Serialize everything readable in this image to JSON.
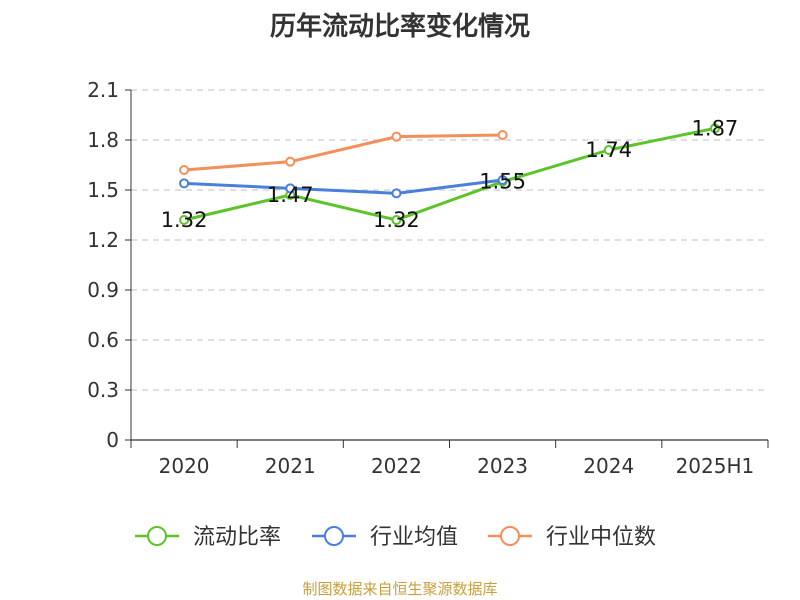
{
  "chart_data": {
    "type": "line",
    "title": "历年流动比率变化情况",
    "categories": [
      "2020",
      "2021",
      "2022",
      "2023",
      "2024",
      "2025H1"
    ],
    "ylim": [
      0,
      2.1
    ],
    "yticks": [
      0,
      0.3,
      0.6,
      0.9,
      1.2,
      1.5,
      1.8,
      2.1
    ],
    "ytick_labels": [
      "0",
      "0.3",
      "0.6",
      "0.9",
      "1.2",
      "1.5",
      "1.8",
      "2.1"
    ],
    "grid": true,
    "legend_position": "bottom",
    "series": [
      {
        "name": "流动比率",
        "color": "#5bc428",
        "values": [
          1.32,
          1.47,
          1.32,
          1.55,
          1.74,
          1.87
        ],
        "labels": [
          "1.32",
          "1.47",
          "1.32",
          "1.55",
          "1.74",
          "1.87"
        ]
      },
      {
        "name": "行业均值",
        "color": "#4a7fdc",
        "values": [
          1.54,
          1.51,
          1.48,
          1.56,
          null,
          null
        ]
      },
      {
        "name": "行业中位数",
        "color": "#f58f5a",
        "values": [
          1.62,
          1.67,
          1.82,
          1.83,
          null,
          null
        ]
      }
    ]
  },
  "footer": {
    "source": "制图数据来自恒生聚源数据库"
  }
}
